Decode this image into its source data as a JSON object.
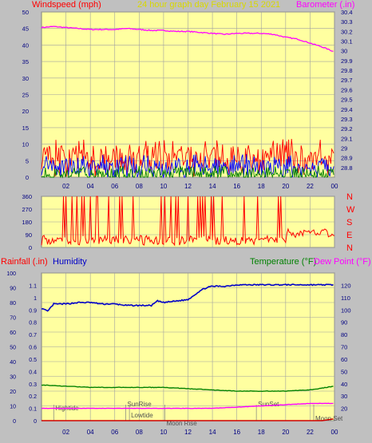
{
  "header": {
    "left_label": "Windspeed (mph)",
    "title": "24 hour graph day   February 15 2021",
    "right_label": "Barometer (.in)"
  },
  "colors": {
    "background": "#c0c0c0",
    "plot_bg": "#ffffa0",
    "grid": "#a0a0a0",
    "wind_red": "#ff0000",
    "wind_blue": "#0000ff",
    "wind_green": "#008000",
    "barometer": "#ff00ff",
    "humidity": "#0000c8",
    "temperature": "#008000",
    "dewpoint": "#ff00ff",
    "rain": "#d00000",
    "title": "#d8d800"
  },
  "x_ticks": [
    "02",
    "04",
    "06",
    "08",
    "10",
    "12",
    "14",
    "16",
    "18",
    "20",
    "22",
    "00"
  ],
  "chart_data": [
    {
      "type": "line",
      "name": "wind-barometer",
      "left_axis": {
        "label": "Windspeed (mph)",
        "ylim": [
          0,
          50
        ],
        "ticks": [
          "0",
          "5",
          "10",
          "15",
          "20",
          "25",
          "30",
          "35",
          "40",
          "45",
          "50"
        ]
      },
      "right_axis": {
        "label": "Barometer (.in)",
        "ylim": [
          28.7,
          30.4
        ],
        "ticks": [
          "28.8",
          "28.9",
          "29",
          "29.1",
          "29.2",
          "29.3",
          "29.4",
          "29.5",
          "29.6",
          "29.7",
          "29.8",
          "29.9",
          "30",
          "30.1",
          "30.2",
          "30.3",
          "30.4"
        ]
      },
      "series": [
        {
          "name": "barometer",
          "axis": "right",
          "x": [
            0,
            1,
            2,
            3,
            4,
            5,
            6,
            7,
            8,
            9,
            10,
            11,
            12,
            13,
            14,
            15,
            16,
            17,
            18,
            19,
            20,
            21,
            22,
            23,
            24
          ],
          "y": [
            30.24,
            30.25,
            30.24,
            30.23,
            30.22,
            30.22,
            30.22,
            30.23,
            30.22,
            30.21,
            30.21,
            30.2,
            30.2,
            30.19,
            30.18,
            30.17,
            30.18,
            30.18,
            30.18,
            30.17,
            30.14,
            30.12,
            30.08,
            30.04,
            29.99
          ]
        },
        {
          "name": "wind-gust",
          "axis": "left",
          "style": "noise",
          "base": 6,
          "amp": 6
        },
        {
          "name": "wind-average",
          "axis": "left",
          "style": "noise",
          "base": 3,
          "amp": 4
        },
        {
          "name": "wind-low",
          "axis": "left",
          "style": "noise",
          "base": 1,
          "amp": 2.5
        }
      ]
    },
    {
      "type": "line",
      "name": "wind-direction",
      "left_axis": {
        "ylim": [
          0,
          360
        ],
        "ticks": [
          "0",
          "90",
          "180",
          "270",
          "360"
        ]
      },
      "right_axis": {
        "labels": [
          "N",
          "W",
          "S",
          "E",
          "N"
        ]
      },
      "series": [
        {
          "name": "direction",
          "x": [
            0,
            24
          ],
          "typical_deg": 50,
          "spike_hours": [
            1.8,
            2.0,
            2.5,
            2.9,
            3.3,
            3.5,
            4.0,
            4.5,
            4.6,
            5.5,
            6.4,
            6.6,
            7.5,
            9.8,
            10.1,
            10.6,
            11.0,
            11.2,
            12.0,
            12.8,
            13.0,
            13.2,
            13.4,
            13.9,
            14.1,
            14.8,
            16.6,
            17.7,
            19.4,
            19.6
          ],
          "late_deg": [
            120,
            90,
            100,
            130,
            115,
            100,
            125,
            90
          ]
        }
      ]
    },
    {
      "type": "line",
      "name": "rain-humidity-temperature",
      "left_axis": {
        "label": "Rainfall (.in)",
        "ylim": [
          0,
          1.2
        ],
        "ticks": [
          "0",
          "0.1",
          "0.2",
          "0.3",
          "0.4",
          "0.5",
          "0.6",
          "0.7",
          "0.8",
          "0.9",
          "1",
          "1.1"
        ]
      },
      "humidity_axis": {
        "label": "Humidity",
        "ylim": [
          0,
          100
        ],
        "ticks": [
          "0",
          "10",
          "20",
          "30",
          "40",
          "50",
          "60",
          "70",
          "80",
          "90",
          "100"
        ]
      },
      "right_axis": {
        "label": "Temperature (°F)",
        "label2": "Dew Point (°F)",
        "ylim": [
          10,
          130
        ],
        "ticks": [
          "20",
          "30",
          "40",
          "50",
          "60",
          "70",
          "80",
          "90",
          "100",
          "110",
          "120"
        ]
      },
      "series": [
        {
          "name": "humidity",
          "x": [
            0,
            0.5,
            1,
            2,
            3,
            4,
            5,
            6,
            7,
            8,
            9,
            9.5,
            10,
            11,
            12,
            12.5,
            13,
            13.5,
            14,
            15,
            16,
            17,
            18,
            19,
            20,
            21,
            22,
            23,
            24
          ],
          "y": [
            76,
            74,
            79,
            79,
            80,
            80,
            79,
            79,
            78,
            78,
            78,
            81,
            80,
            81,
            82,
            85,
            88,
            90,
            91,
            91,
            92,
            92,
            92,
            92,
            92,
            92,
            92,
            92,
            92
          ]
        },
        {
          "name": "temperature",
          "x": [
            0,
            2,
            4,
            6,
            8,
            10,
            12,
            14,
            16,
            18,
            20,
            22,
            24
          ],
          "y": [
            39,
            38,
            37,
            37,
            37,
            37,
            36,
            35,
            34,
            34,
            34,
            35,
            38
          ]
        },
        {
          "name": "dewpoint",
          "x": [
            0,
            2,
            4,
            6,
            8,
            10,
            12,
            14,
            16,
            18,
            20,
            22,
            24
          ],
          "y": [
            20,
            20,
            20,
            20,
            20,
            20,
            20,
            20,
            21,
            22,
            23,
            24,
            24
          ]
        },
        {
          "name": "rain",
          "x": [
            0,
            1,
            2,
            3,
            4,
            5,
            6,
            7,
            8,
            9,
            10,
            11,
            12,
            13,
            14,
            15,
            16,
            17,
            18,
            19,
            20,
            21,
            22,
            23,
            24
          ],
          "y": [
            0,
            0,
            0,
            0,
            0,
            0,
            0,
            0,
            0,
            0,
            0,
            0,
            0,
            0,
            0,
            0,
            0,
            0,
            0,
            0,
            0,
            0,
            0,
            0,
            0.015
          ]
        }
      ],
      "annotations": [
        {
          "text": "Hightide",
          "x": 1.0
        },
        {
          "text": "SunRise",
          "x": 6.9
        },
        {
          "text": "Lowtide",
          "x": 7.2
        },
        {
          "text": "Moon Rise",
          "x": 10.1
        },
        {
          "text": "SunSet",
          "x": 17.6
        },
        {
          "text": "Moon Set",
          "x": 22.3
        }
      ]
    }
  ]
}
